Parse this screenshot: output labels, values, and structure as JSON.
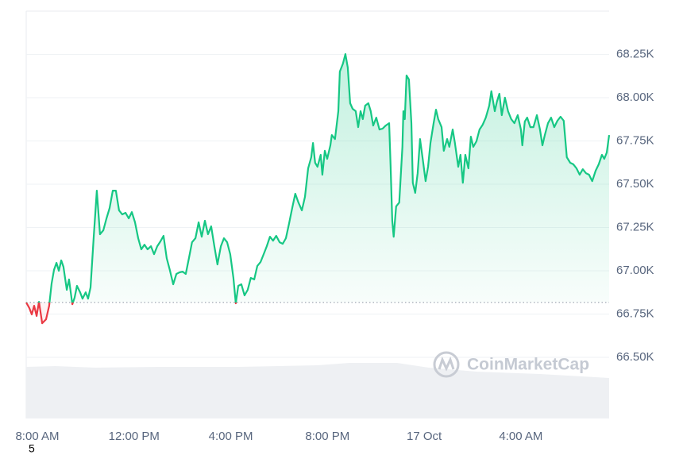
{
  "chart_data": {
    "type": "line",
    "watermark": "CoinMarketCap",
    "footnote": "5",
    "up_color": "#16c784",
    "down_color": "#ea3943",
    "grid": true,
    "xlim": [
      -0.46,
      23.65
    ],
    "xticks": [
      {
        "value": 0,
        "label": "8:00 AM"
      },
      {
        "value": 4,
        "label": "12:00 PM"
      },
      {
        "value": 8,
        "label": "4:00 PM"
      },
      {
        "value": 12,
        "label": "8:00 PM"
      },
      {
        "value": 16,
        "label": "17 Oct"
      },
      {
        "value": 20,
        "label": "4:00 AM"
      }
    ],
    "ylim": [
      66147,
      68500
    ],
    "yticks": [
      {
        "value": 66500,
        "label": "66.50K"
      },
      {
        "value": 66750,
        "label": "66.75K"
      },
      {
        "value": 67000,
        "label": "67.00K"
      },
      {
        "value": 67250,
        "label": "67.25K"
      },
      {
        "value": 67500,
        "label": "67.50K"
      },
      {
        "value": 67750,
        "label": "67.75K"
      },
      {
        "value": 68000,
        "label": "68.00K"
      },
      {
        "value": 68250,
        "label": "68.25K"
      }
    ],
    "x": [
      -0.46,
      -0.33,
      -0.23,
      -0.13,
      -0.03,
      0.07,
      0.2,
      0.36,
      0.49,
      0.59,
      0.69,
      0.79,
      0.89,
      0.99,
      1.08,
      1.22,
      1.31,
      1.45,
      1.54,
      1.64,
      1.77,
      1.87,
      2.0,
      2.1,
      2.2,
      2.33,
      2.46,
      2.59,
      2.73,
      2.86,
      2.99,
      3.12,
      3.25,
      3.38,
      3.51,
      3.65,
      3.78,
      3.91,
      4.04,
      4.17,
      4.3,
      4.43,
      4.56,
      4.7,
      4.83,
      4.96,
      5.09,
      5.22,
      5.35,
      5.48,
      5.62,
      5.75,
      5.88,
      6.01,
      6.14,
      6.27,
      6.4,
      6.54,
      6.67,
      6.8,
      6.93,
      7.06,
      7.19,
      7.32,
      7.45,
      7.59,
      7.72,
      7.85,
      7.98,
      8.11,
      8.21,
      8.31,
      8.44,
      8.57,
      8.7,
      8.83,
      8.97,
      9.1,
      9.23,
      9.36,
      9.49,
      9.62,
      9.75,
      9.88,
      10.02,
      10.15,
      10.28,
      10.41,
      10.54,
      10.67,
      10.8,
      10.94,
      11.07,
      11.2,
      11.33,
      11.4,
      11.49,
      11.59,
      11.72,
      11.79,
      11.89,
      11.99,
      12.12,
      12.18,
      12.31,
      12.45,
      12.51,
      12.64,
      12.74,
      12.84,
      12.94,
      13.04,
      13.17,
      13.27,
      13.37,
      13.46,
      13.56,
      13.69,
      13.79,
      13.89,
      14.02,
      14.15,
      14.28,
      14.41,
      14.55,
      14.61,
      14.68,
      14.74,
      14.84,
      14.97,
      15.1,
      15.14,
      15.2,
      15.27,
      15.37,
      15.47,
      15.53,
      15.63,
      15.73,
      15.83,
      15.96,
      16.06,
      16.16,
      16.26,
      16.39,
      16.49,
      16.58,
      16.72,
      16.81,
      16.95,
      17.04,
      17.18,
      17.27,
      17.41,
      17.5,
      17.6,
      17.7,
      17.83,
      17.93,
      18.03,
      18.16,
      18.29,
      18.42,
      18.55,
      18.69,
      18.78,
      18.92,
      19.01,
      19.11,
      19.21,
      19.34,
      19.47,
      19.6,
      19.73,
      19.87,
      20.0,
      20.06,
      20.16,
      20.26,
      20.39,
      20.52,
      20.66,
      20.79,
      20.89,
      20.99,
      21.12,
      21.25,
      21.38,
      21.51,
      21.64,
      21.77,
      21.9,
      22.04,
      22.17,
      22.3,
      22.43,
      22.56,
      22.69,
      22.82,
      22.95,
      23.09,
      23.22,
      23.35,
      23.45,
      23.55,
      23.65
    ],
    "values": [
      66817,
      66784,
      66748,
      66798,
      66739,
      66821,
      66697,
      66720,
      66798,
      66927,
      67005,
      67046,
      67000,
      67060,
      67023,
      66890,
      66950,
      66807,
      66844,
      66913,
      66876,
      66839,
      66876,
      66839,
      66904,
      67188,
      67463,
      67211,
      67234,
      67303,
      67362,
      67463,
      67463,
      67349,
      67326,
      67335,
      67303,
      67339,
      67280,
      67188,
      67124,
      67151,
      67124,
      67142,
      67096,
      67142,
      67170,
      67202,
      67073,
      67005,
      66922,
      66982,
      66991,
      66995,
      66982,
      67073,
      67165,
      67188,
      67280,
      67197,
      67289,
      67211,
      67257,
      67142,
      67037,
      67142,
      67188,
      67165,
      67096,
      66959,
      66812,
      66913,
      66922,
      66858,
      66890,
      66959,
      66950,
      67028,
      67050,
      67096,
      67142,
      67197,
      67174,
      67202,
      67165,
      67156,
      67188,
      67271,
      67362,
      67445,
      67394,
      67349,
      67427,
      67592,
      67656,
      67738,
      67624,
      67601,
      67670,
      67555,
      67693,
      67647,
      67725,
      67784,
      67761,
      67922,
      68151,
      68197,
      68252,
      68174,
      67968,
      67936,
      67922,
      67830,
      67922,
      67876,
      67954,
      67968,
      67922,
      67839,
      67885,
      67816,
      67821,
      67839,
      67853,
      67610,
      67289,
      67197,
      67372,
      67394,
      67716,
      67922,
      67876,
      68128,
      68105,
      67853,
      67509,
      67450,
      67564,
      67761,
      67624,
      67518,
      67601,
      67738,
      67853,
      67931,
      67876,
      67830,
      67693,
      67761,
      67716,
      67816,
      67738,
      67601,
      67670,
      67509,
      67670,
      67592,
      67775,
      67716,
      67748,
      67816,
      67844,
      67885,
      67954,
      68037,
      67922,
      67977,
      68023,
      67899,
      68000,
      67922,
      67876,
      67853,
      67899,
      67816,
      67725,
      67862,
      67885,
      67830,
      67830,
      67899,
      67816,
      67725,
      67784,
      67853,
      67885,
      67830,
      67867,
      67890,
      67867,
      67656,
      67624,
      67615,
      67592,
      67555,
      67587,
      67564,
      67555,
      67518,
      67578,
      67615,
      67670,
      67647,
      67683,
      67784
    ]
  }
}
